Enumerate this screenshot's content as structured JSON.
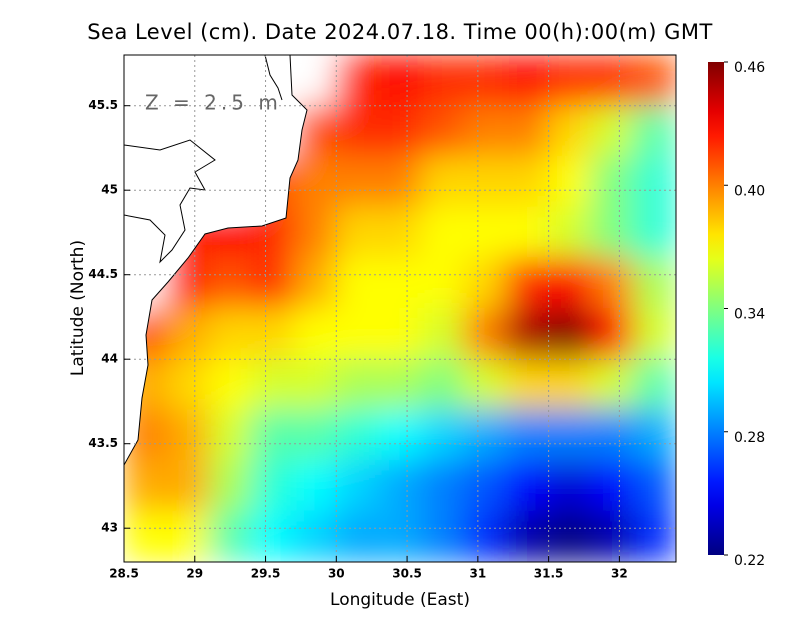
{
  "chart_data": {
    "type": "heatmap",
    "title": "Sea Level (cm). Date 2024.07.18. Time 00(h):00(m) GMT",
    "annotation": "Z = 2.5 m",
    "xlabel": "Longitude (East)",
    "ylabel": "Latitude (North)",
    "xlim": [
      28.5,
      32.4
    ],
    "ylim": [
      42.8,
      45.8
    ],
    "xticks": [
      28.5,
      29,
      29.5,
      30,
      30.5,
      31,
      31.5,
      32
    ],
    "yticks": [
      43,
      43.5,
      44,
      44.5,
      45,
      45.5
    ],
    "grid": true,
    "colormap": "jet",
    "clim": [
      0.22,
      0.46
    ],
    "cticks": [
      0.22,
      0.28,
      0.34,
      {
        "value": 0.4,
        "label": "0.40"
      },
      0.46
    ],
    "x": [
      28.65,
      28.95,
      29.25,
      29.55,
      29.85,
      30.15,
      30.45,
      30.75,
      31.05,
      31.35,
      31.65,
      31.95,
      32.25
    ],
    "y": [
      45.65,
      45.35,
      45.05,
      44.75,
      44.45,
      44.15,
      43.85,
      43.55,
      43.25,
      42.95
    ],
    "z": [
      [
        null,
        null,
        null,
        null,
        null,
        0.42,
        0.43,
        0.42,
        0.42,
        0.43,
        0.42,
        0.42,
        0.41
      ],
      [
        null,
        null,
        null,
        null,
        0.41,
        0.42,
        0.42,
        0.41,
        0.4,
        0.4,
        0.38,
        0.36,
        0.33
      ],
      [
        null,
        null,
        null,
        0.41,
        0.4,
        0.4,
        0.4,
        0.38,
        0.38,
        0.38,
        0.37,
        0.34,
        0.32
      ],
      [
        null,
        0.42,
        0.43,
        0.42,
        0.4,
        0.38,
        0.38,
        0.37,
        0.37,
        0.37,
        0.36,
        0.34,
        0.32
      ],
      [
        null,
        0.42,
        0.41,
        0.42,
        0.39,
        0.37,
        0.37,
        0.37,
        0.38,
        0.42,
        0.43,
        0.4,
        0.35
      ],
      [
        0.41,
        0.39,
        0.38,
        0.38,
        0.37,
        0.37,
        0.37,
        0.36,
        0.4,
        0.45,
        0.46,
        0.43,
        0.36
      ],
      [
        0.39,
        0.38,
        0.37,
        0.36,
        0.36,
        0.35,
        0.35,
        0.34,
        0.36,
        0.38,
        0.38,
        0.36,
        0.33
      ],
      [
        0.4,
        0.39,
        0.36,
        0.33,
        0.33,
        0.32,
        0.31,
        0.3,
        0.29,
        0.28,
        0.28,
        0.28,
        0.29
      ],
      [
        0.39,
        0.39,
        0.35,
        0.32,
        0.31,
        0.3,
        0.29,
        0.28,
        0.27,
        0.25,
        0.24,
        0.25,
        0.27
      ],
      [
        0.37,
        0.37,
        0.33,
        0.31,
        0.3,
        0.29,
        0.29,
        0.28,
        0.26,
        0.23,
        0.22,
        0.23,
        0.26
      ]
    ]
  }
}
